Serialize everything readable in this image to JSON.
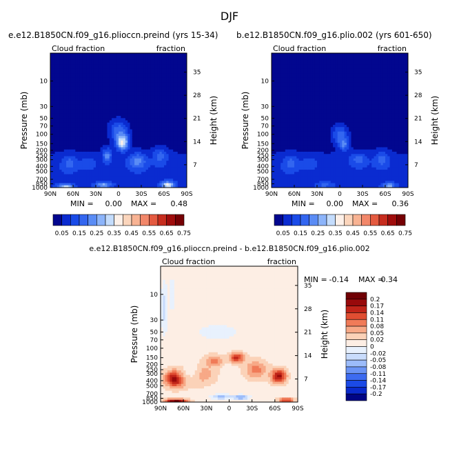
{
  "figure": {
    "season": "DJF"
  },
  "palette": {
    "abs_colors": [
      "#02078f",
      "#0a2bd0",
      "#1a4be8",
      "#3366f0",
      "#5a8cf5",
      "#8cb4fa",
      "#c4dcfc",
      "#fdf0e8",
      "#fbd5bc",
      "#f8b393",
      "#f2876a",
      "#e45a40",
      "#c72d1e",
      "#a00d0c",
      "#760004"
    ],
    "diff_colors": [
      "#000585",
      "#0a2acc",
      "#1b4ae6",
      "#3d6bf0",
      "#6b94f5",
      "#9cbcfa",
      "#c9dcfc",
      "#e8f1fd",
      "#fdeee4",
      "#fbd2b8",
      "#f7a987",
      "#f07b58",
      "#e04e32",
      "#c02419",
      "#980a0b",
      "#700004"
    ]
  },
  "chart_data": [
    {
      "type": "heatmap",
      "title_left": "e.e12.B1850CN.f09_g16.plioccn.preind (yrs 15-34)",
      "subtitle_left": "Cloud fraction",
      "subtitle_right": "fraction",
      "ylabel_left": "Pressure (mb)",
      "ylabel_right": "Height (km)",
      "x_ticks": [
        "90N",
        "60N",
        "30N",
        "0",
        "30S",
        "60S",
        "90S"
      ],
      "y_ticks_left": [
        "10",
        "30",
        "50",
        "70",
        "100",
        "150",
        "200",
        "250",
        "300",
        "400",
        "500",
        "700",
        "850",
        "1000"
      ],
      "y_ticks_right": [
        "35",
        "28",
        "21",
        "14",
        "7"
      ],
      "stats": {
        "min_label": "MIN =",
        "min": "0.00",
        "max_label": "MAX =",
        "max": "0.48"
      },
      "colorbar": {
        "levels": [
          "0.05",
          "0.15",
          "0.25",
          "0.35",
          "0.45",
          "0.55",
          "0.65",
          "0.75"
        ]
      },
      "blobs": [
        {
          "lat": 0,
          "p": 85,
          "rx": 12,
          "rp": 0.45,
          "v": 3
        },
        {
          "lat": -5,
          "p": 140,
          "rx": 8,
          "rp": 0.35,
          "v": 7
        },
        {
          "lat": 40,
          "p": 350,
          "rx": 12,
          "rp": 0.3,
          "v": 2
        },
        {
          "lat": 15,
          "p": 250,
          "rx": 6,
          "rp": 0.3,
          "v": 4
        },
        {
          "lat": -25,
          "p": 320,
          "rx": 12,
          "rp": 0.35,
          "v": 4
        },
        {
          "lat": -55,
          "p": 260,
          "rx": 10,
          "rp": 0.35,
          "v": 3
        },
        {
          "lat": 65,
          "p": 350,
          "rx": 10,
          "rp": 0.35,
          "v": 3
        },
        {
          "lat": -65,
          "p": 900,
          "rx": 8,
          "rp": 0.15,
          "v": 7
        },
        {
          "lat": 70,
          "p": 950,
          "rx": 10,
          "rp": 0.1,
          "v": 6
        },
        {
          "lat": 20,
          "p": 900,
          "rx": 10,
          "rp": 0.12,
          "v": 5
        }
      ]
    },
    {
      "type": "heatmap",
      "title_left": "b.e12.B1850CN.f09_g16.plio.002 (yrs 601-650)",
      "subtitle_left": "Cloud fraction",
      "subtitle_right": "fraction",
      "ylabel_left": "Pressure (mb)",
      "ylabel_right": "Height (km)",
      "x_ticks": [
        "90N",
        "60N",
        "30N",
        "0",
        "30S",
        "60S",
        "90S"
      ],
      "y_ticks_left": [
        "10",
        "30",
        "50",
        "70",
        "100",
        "150",
        "200",
        "250",
        "300",
        "400",
        "500",
        "700",
        "850",
        "1000"
      ],
      "y_ticks_right": [
        "35",
        "28",
        "21",
        "14",
        "7"
      ],
      "stats": {
        "min_label": "MIN =",
        "min": "0.00",
        "max_label": "MAX =",
        "max": "0.36"
      },
      "colorbar": {
        "levels": [
          "0.05",
          "0.15",
          "0.25",
          "0.35",
          "0.45",
          "0.55",
          "0.65",
          "0.75"
        ]
      },
      "blobs": [
        {
          "lat": 0,
          "p": 100,
          "rx": 10,
          "rp": 0.4,
          "v": 3
        },
        {
          "lat": -5,
          "p": 150,
          "rx": 7,
          "rp": 0.3,
          "v": 4
        },
        {
          "lat": 40,
          "p": 350,
          "rx": 12,
          "rp": 0.3,
          "v": 2
        },
        {
          "lat": -25,
          "p": 300,
          "rx": 12,
          "rp": 0.3,
          "v": 3
        },
        {
          "lat": -55,
          "p": 300,
          "rx": 10,
          "rp": 0.35,
          "v": 3
        },
        {
          "lat": 65,
          "p": 350,
          "rx": 10,
          "rp": 0.35,
          "v": 3
        },
        {
          "lat": -65,
          "p": 930,
          "rx": 8,
          "rp": 0.12,
          "v": 5
        },
        {
          "lat": 20,
          "p": 900,
          "rx": 10,
          "rp": 0.12,
          "v": 3
        }
      ]
    },
    {
      "type": "heatmap",
      "title_left": "e.e12.B1850CN.f09_g16.plioccn.preind - b.e12.B1850CN.f09_g16.plio.002",
      "subtitle_left": "Cloud fraction",
      "subtitle_right": "fraction",
      "ylabel_left": "Pressure (mb)",
      "ylabel_right": "Height (km)",
      "x_ticks": [
        "90N",
        "60N",
        "30N",
        "0",
        "30S",
        "60S",
        "90S"
      ],
      "y_ticks_left": [
        "10",
        "30",
        "50",
        "70",
        "100",
        "150",
        "200",
        "250",
        "300",
        "400",
        "500",
        "700",
        "850",
        "1000"
      ],
      "y_ticks_right": [
        "35",
        "28",
        "21",
        "14",
        "7"
      ],
      "stats": {
        "min_label": "MIN =",
        "min": "-0.14",
        "max_label": "MAX =",
        "max": "0.34"
      },
      "colorbar": {
        "levels": [
          "0.2",
          "0.17",
          "0.14",
          "0.11",
          "0.08",
          "0.05",
          "0.02",
          "0",
          "-0.02",
          "-0.05",
          "-0.08",
          "-0.11",
          "-0.14",
          "-0.17",
          "-0.2"
        ]
      },
      "blobs": [
        {
          "lat": 70,
          "p": 370,
          "rx": 14,
          "rp": 0.35,
          "v": 15
        },
        {
          "lat": 70,
          "p": 940,
          "rx": 15,
          "rp": 0.08,
          "v": 15
        },
        {
          "lat": -65,
          "p": 330,
          "rx": 10,
          "rp": 0.3,
          "v": 14
        },
        {
          "lat": -75,
          "p": 920,
          "rx": 10,
          "rp": 0.1,
          "v": 13
        },
        {
          "lat": -10,
          "p": 150,
          "rx": 10,
          "rp": 0.22,
          "v": 13
        },
        {
          "lat": 20,
          "p": 170,
          "rx": 12,
          "rp": 0.25,
          "v": 11
        },
        {
          "lat": 40,
          "p": 300,
          "rx": 20,
          "rp": 0.45,
          "v": 11
        },
        {
          "lat": -35,
          "p": 250,
          "rx": 15,
          "rp": 0.4,
          "v": 11
        },
        {
          "lat": 10,
          "p": 800,
          "rx": 12,
          "rp": 0.1,
          "v": 5
        },
        {
          "lat": -15,
          "p": 820,
          "rx": 10,
          "rp": 0.1,
          "v": 4
        },
        {
          "lat": 50,
          "p": 250,
          "rx": 15,
          "rp": 0.6,
          "v": 8
        },
        {
          "lat": 15,
          "p": 50,
          "rx": 30,
          "rp": 0.35,
          "v": 7
        },
        {
          "lat": 85,
          "p": 18,
          "rx": 4,
          "rp": 1.0,
          "v": 6
        },
        {
          "lat": 75,
          "p": 10,
          "rx": 3,
          "rp": 1.0,
          "v": 7
        }
      ],
      "base_value": 8
    }
  ]
}
